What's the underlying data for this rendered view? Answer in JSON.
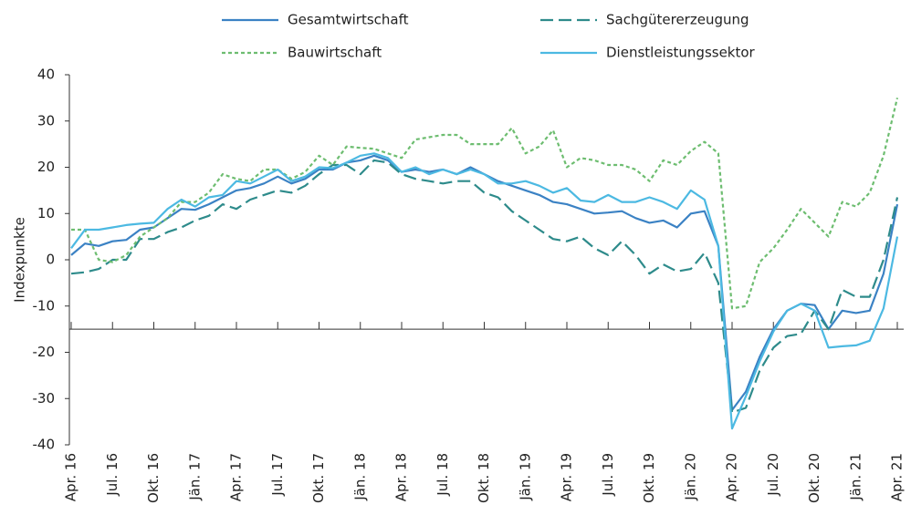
{
  "chart_data": {
    "type": "line",
    "y_label": "Indexpunkte",
    "categories": [
      "Apr. 16",
      null,
      null,
      "Jul. 16",
      null,
      null,
      "Okt. 16",
      null,
      null,
      "Jän. 17",
      null,
      null,
      "Apr. 17",
      null,
      null,
      "Jul. 17",
      null,
      null,
      "Okt. 17",
      null,
      null,
      "Jän. 18",
      null,
      null,
      "Apr. 18",
      null,
      null,
      "Jul. 18",
      null,
      null,
      "Okt. 18",
      null,
      null,
      "Jän. 19",
      null,
      null,
      "Apr. 19",
      null,
      null,
      "Jul. 19",
      null,
      null,
      "Okt. 19",
      null,
      null,
      "Jän. 20",
      null,
      null,
      "Apr. 20",
      null,
      null,
      "Jul. 20",
      null,
      null,
      "Okt. 20",
      null,
      null,
      "Jän. 21",
      null,
      null,
      "Apr. 21"
    ],
    "ylim": [
      -40,
      40
    ],
    "yticks": [
      -40,
      -30,
      -20,
      -10,
      0,
      10,
      20,
      30,
      40
    ],
    "xaxis_crossing": -15,
    "series": [
      {
        "name": "Gesamtwirtschaft",
        "color": "#3b82c4",
        "style": "solid",
        "values": [
          1,
          3.5,
          3,
          4,
          4.3,
          6.5,
          7,
          9,
          11,
          10.8,
          12,
          13.5,
          15,
          15.5,
          16.5,
          18,
          16.5,
          17.5,
          19.5,
          19.5,
          21,
          21.5,
          22.5,
          21.5,
          19,
          19.5,
          19,
          19.5,
          18.5,
          20,
          18.5,
          17,
          16,
          15,
          14,
          12.5,
          12,
          11,
          10,
          10.2,
          10.5,
          9,
          8,
          8.5,
          7,
          10,
          10.5,
          3,
          -32.5,
          -28.5,
          -21,
          -15,
          -11,
          -9.5,
          -9.8,
          -15,
          -11,
          -11.5,
          -11,
          -3,
          12
        ]
      },
      {
        "name": "Sachgütererzeugung",
        "color": "#2e8b8b",
        "style": "dashed",
        "values": [
          -3,
          -2.7,
          -2,
          0,
          0,
          4.5,
          4.5,
          6,
          7,
          8.5,
          9.5,
          12,
          11,
          13,
          14,
          15,
          14.5,
          16,
          18.5,
          20.5,
          20.5,
          18.5,
          21.5,
          21,
          18.5,
          17.5,
          17,
          16.5,
          17,
          17,
          14.5,
          13.5,
          10.5,
          8.5,
          6.5,
          4.5,
          4,
          5,
          2.5,
          1,
          4,
          1,
          -3,
          -1,
          -2.5,
          -2,
          1.5,
          -5,
          -33,
          -32,
          -24,
          -19,
          -16.5,
          -16,
          -11,
          -15,
          -6.5,
          -8,
          -8,
          0,
          13.5
        ]
      },
      {
        "name": "Bauwirtschaft",
        "color": "#6dbd70",
        "style": "dotted",
        "values": [
          6.5,
          6.5,
          0,
          -0.5,
          1,
          5,
          7,
          9,
          12.5,
          12.5,
          14.5,
          18.5,
          17.5,
          17,
          19.5,
          19.5,
          17.5,
          19,
          22.5,
          20.5,
          24.5,
          24.2,
          24,
          23,
          22,
          26,
          26.5,
          27,
          27,
          25,
          25,
          25,
          28.5,
          23,
          24.5,
          28,
          20,
          22,
          21.5,
          20.5,
          20.5,
          19.5,
          17,
          21.5,
          20.5,
          23.5,
          25.5,
          23,
          -10.5,
          -10,
          -0.5,
          2.5,
          6.5,
          11,
          8,
          5,
          12.5,
          11.5,
          14.5,
          22.5,
          35
        ]
      },
      {
        "name": "Dienstleistungssektor",
        "color": "#4cb9e2",
        "style": "solid",
        "values": [
          2.5,
          6.5,
          6.5,
          7,
          7.5,
          7.8,
          8,
          11,
          13,
          11.5,
          13.5,
          14,
          17,
          16.5,
          18,
          19.5,
          17,
          18,
          20,
          19.8,
          21,
          22.5,
          23,
          22,
          19,
          20,
          18.5,
          19.5,
          18.5,
          19.5,
          18.5,
          16.5,
          16.5,
          17,
          16,
          14.5,
          15.5,
          12.8,
          12.5,
          14,
          12.5,
          12.5,
          13.5,
          12.5,
          11,
          15,
          13,
          3,
          -36.5,
          -29.5,
          -22,
          -15.5,
          -11,
          -9.5,
          -11,
          -19,
          -18.7,
          -18.5,
          -17.5,
          -10.5,
          5
        ]
      }
    ]
  }
}
